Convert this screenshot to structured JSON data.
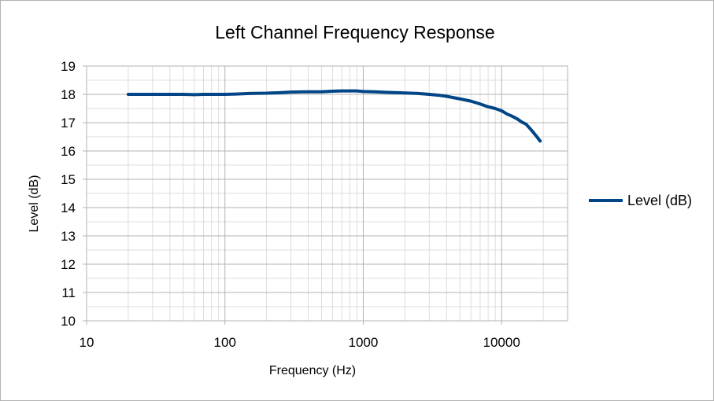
{
  "chart_data": {
    "type": "line",
    "title": "Left Channel Frequency Response",
    "xlabel": "Frequency (Hz)",
    "ylabel": "Level (dB)",
    "x_scale": "log",
    "xlim": [
      10,
      30000
    ],
    "ylim": [
      10,
      19
    ],
    "x_ticks": [
      10,
      100,
      1000,
      10000
    ],
    "x_tick_labels": [
      "10",
      "100",
      "1000",
      "10000"
    ],
    "y_ticks": [
      10,
      11,
      12,
      13,
      14,
      15,
      16,
      17,
      18,
      19
    ],
    "y_tick_labels": [
      "10",
      "11",
      "12",
      "13",
      "14",
      "15",
      "16",
      "17",
      "18",
      "19"
    ],
    "grid": true,
    "legend_position": "right",
    "series": [
      {
        "name": "Level (dB)",
        "color": "#004586",
        "points": [
          [
            20,
            18.0
          ],
          [
            30,
            18.0
          ],
          [
            40,
            18.0
          ],
          [
            50,
            18.0
          ],
          [
            60,
            17.99
          ],
          [
            70,
            18.0
          ],
          [
            80,
            18.0
          ],
          [
            100,
            18.0
          ],
          [
            120,
            18.01
          ],
          [
            150,
            18.03
          ],
          [
            200,
            18.04
          ],
          [
            250,
            18.06
          ],
          [
            300,
            18.08
          ],
          [
            400,
            18.09
          ],
          [
            500,
            18.09
          ],
          [
            600,
            18.11
          ],
          [
            700,
            18.12
          ],
          [
            800,
            18.12
          ],
          [
            900,
            18.12
          ],
          [
            1000,
            18.1
          ],
          [
            1200,
            18.09
          ],
          [
            1500,
            18.07
          ],
          [
            2000,
            18.05
          ],
          [
            2500,
            18.03
          ],
          [
            3000,
            18.0
          ],
          [
            3500,
            17.97
          ],
          [
            4000,
            17.93
          ],
          [
            5000,
            17.84
          ],
          [
            6000,
            17.76
          ],
          [
            7000,
            17.66
          ],
          [
            8000,
            17.56
          ],
          [
            9000,
            17.5
          ],
          [
            10000,
            17.42
          ],
          [
            11000,
            17.3
          ],
          [
            12000,
            17.22
          ],
          [
            13000,
            17.13
          ],
          [
            14000,
            17.02
          ],
          [
            15000,
            16.95
          ],
          [
            16000,
            16.8
          ],
          [
            17000,
            16.65
          ],
          [
            18000,
            16.5
          ],
          [
            19000,
            16.35
          ]
        ]
      }
    ]
  }
}
